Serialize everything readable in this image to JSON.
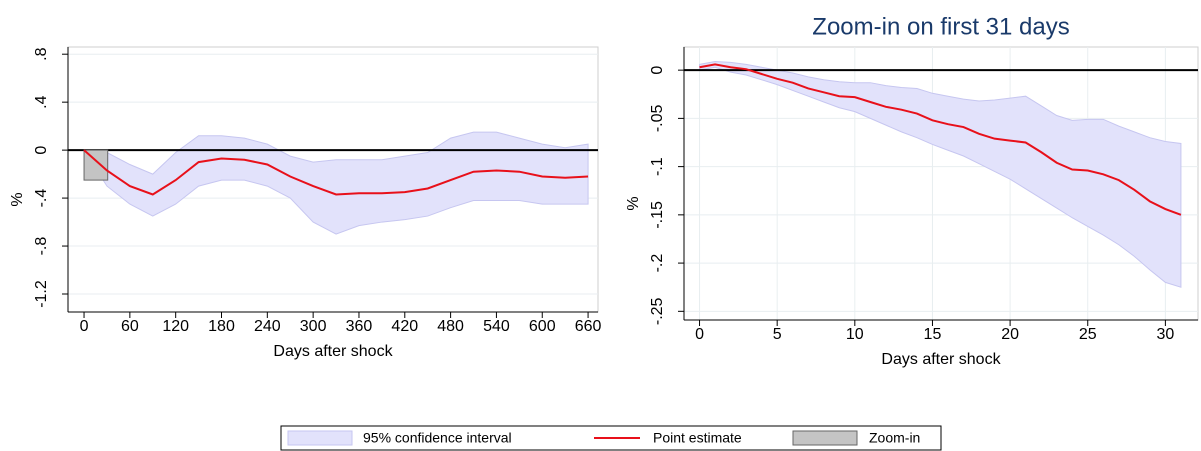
{
  "chart_data": [
    {
      "type": "line",
      "xlabel": "Days after shock",
      "ylabel": "%",
      "x": [
        0,
        30,
        60,
        90,
        120,
        150,
        180,
        210,
        240,
        270,
        300,
        330,
        360,
        390,
        420,
        450,
        480,
        510,
        540,
        570,
        600,
        630,
        660
      ],
      "xlim": [
        -21,
        673
      ],
      "xticks": [
        0,
        60,
        120,
        180,
        240,
        300,
        360,
        420,
        480,
        540,
        600,
        660
      ],
      "ylim": [
        -1.35,
        0.86
      ],
      "yticks": [
        {
          "value": -1.2,
          "label": "-1.2"
        },
        {
          "value": -0.8,
          "label": "-.8"
        },
        {
          "value": -0.4,
          "label": "-.4"
        },
        0,
        {
          "value": 0.4,
          "label": ".4"
        },
        {
          "value": 0.8,
          "label": ".8"
        }
      ],
      "grid": "y",
      "hline": 0,
      "legend": "bottom",
      "band": {
        "name": "95% confidence interval",
        "color": "#e2e2fb",
        "upper": [
          0,
          -0.02,
          -0.12,
          -0.2,
          -0.02,
          0.12,
          0.12,
          0.1,
          0.05,
          -0.05,
          -0.1,
          -0.08,
          -0.08,
          -0.08,
          -0.05,
          -0.02,
          0.1,
          0.15,
          0.15,
          0.1,
          0.05,
          0.02,
          0.05
        ],
        "lower": [
          0,
          -0.3,
          -0.45,
          -0.55,
          -0.45,
          -0.3,
          -0.25,
          -0.25,
          -0.3,
          -0.4,
          -0.6,
          -0.7,
          -0.63,
          -0.6,
          -0.58,
          -0.55,
          -0.48,
          -0.42,
          -0.42,
          -0.42,
          -0.45,
          -0.45,
          -0.45
        ]
      },
      "series": [
        {
          "name": "Point estimate",
          "color": "#e8101a",
          "values": [
            0,
            -0.17,
            -0.3,
            -0.37,
            -0.25,
            -0.1,
            -0.07,
            -0.08,
            -0.12,
            -0.22,
            -0.3,
            -0.37,
            -0.36,
            -0.36,
            -0.35,
            -0.32,
            -0.25,
            -0.18,
            -0.17,
            -0.18,
            -0.22,
            -0.23,
            -0.22
          ]
        }
      ],
      "zoom": {
        "name": "Zoom-in",
        "color": "#c4c4c4",
        "x": [
          0,
          31
        ],
        "y": [
          -0.25,
          0
        ]
      }
    },
    {
      "type": "line",
      "title": "Zoom-in on first 31 days",
      "xlabel": "Days after shock",
      "ylabel": "%",
      "x": [
        0,
        1,
        2,
        3,
        4,
        5,
        6,
        7,
        8,
        9,
        10,
        11,
        12,
        13,
        14,
        15,
        16,
        17,
        18,
        19,
        20,
        21,
        22,
        23,
        24,
        25,
        26,
        27,
        28,
        29,
        30,
        31
      ],
      "xlim": [
        -1,
        32.1
      ],
      "xticks": [
        0,
        5,
        10,
        15,
        20,
        25,
        30
      ],
      "ylim": [
        -0.259,
        0.024
      ],
      "yticks": [
        {
          "value": -0.25,
          "label": "-.25"
        },
        {
          "value": -0.2,
          "label": "-.2"
        },
        {
          "value": -0.15,
          "label": "-.15"
        },
        {
          "value": -0.1,
          "label": "-.1"
        },
        {
          "value": -0.05,
          "label": "-.05"
        },
        0
      ],
      "grid": "both",
      "hline": 0,
      "band": {
        "color": "#e2e2fb",
        "upper": [
          0.006,
          0.009,
          0.008,
          0.006,
          0.003,
          0,
          -0.003,
          -0.007,
          -0.01,
          -0.012,
          -0.013,
          -0.013,
          -0.016,
          -0.018,
          -0.019,
          -0.024,
          -0.027,
          -0.03,
          -0.032,
          -0.031,
          -0.029,
          -0.027,
          -0.037,
          -0.047,
          -0.052,
          -0.051,
          -0.051,
          -0.058,
          -0.064,
          -0.07,
          -0.074,
          -0.076
        ],
        "lower": [
          0,
          0.003,
          -0.002,
          -0.005,
          -0.01,
          -0.015,
          -0.021,
          -0.027,
          -0.033,
          -0.039,
          -0.043,
          -0.05,
          -0.057,
          -0.064,
          -0.07,
          -0.077,
          -0.083,
          -0.089,
          -0.097,
          -0.105,
          -0.113,
          -0.123,
          -0.133,
          -0.143,
          -0.153,
          -0.162,
          -0.171,
          -0.181,
          -0.193,
          -0.207,
          -0.22,
          -0.225
        ]
      },
      "series": [
        {
          "color": "#e8101a",
          "values": [
            0.003,
            0.006,
            0.003,
            0.001,
            -0.004,
            -0.009,
            -0.013,
            -0.019,
            -0.023,
            -0.027,
            -0.028,
            -0.033,
            -0.038,
            -0.041,
            -0.045,
            -0.052,
            -0.056,
            -0.059,
            -0.066,
            -0.071,
            -0.073,
            -0.075,
            -0.085,
            -0.096,
            -0.103,
            -0.104,
            -0.108,
            -0.114,
            -0.124,
            -0.136,
            -0.144,
            -0.15
          ]
        }
      ]
    }
  ]
}
